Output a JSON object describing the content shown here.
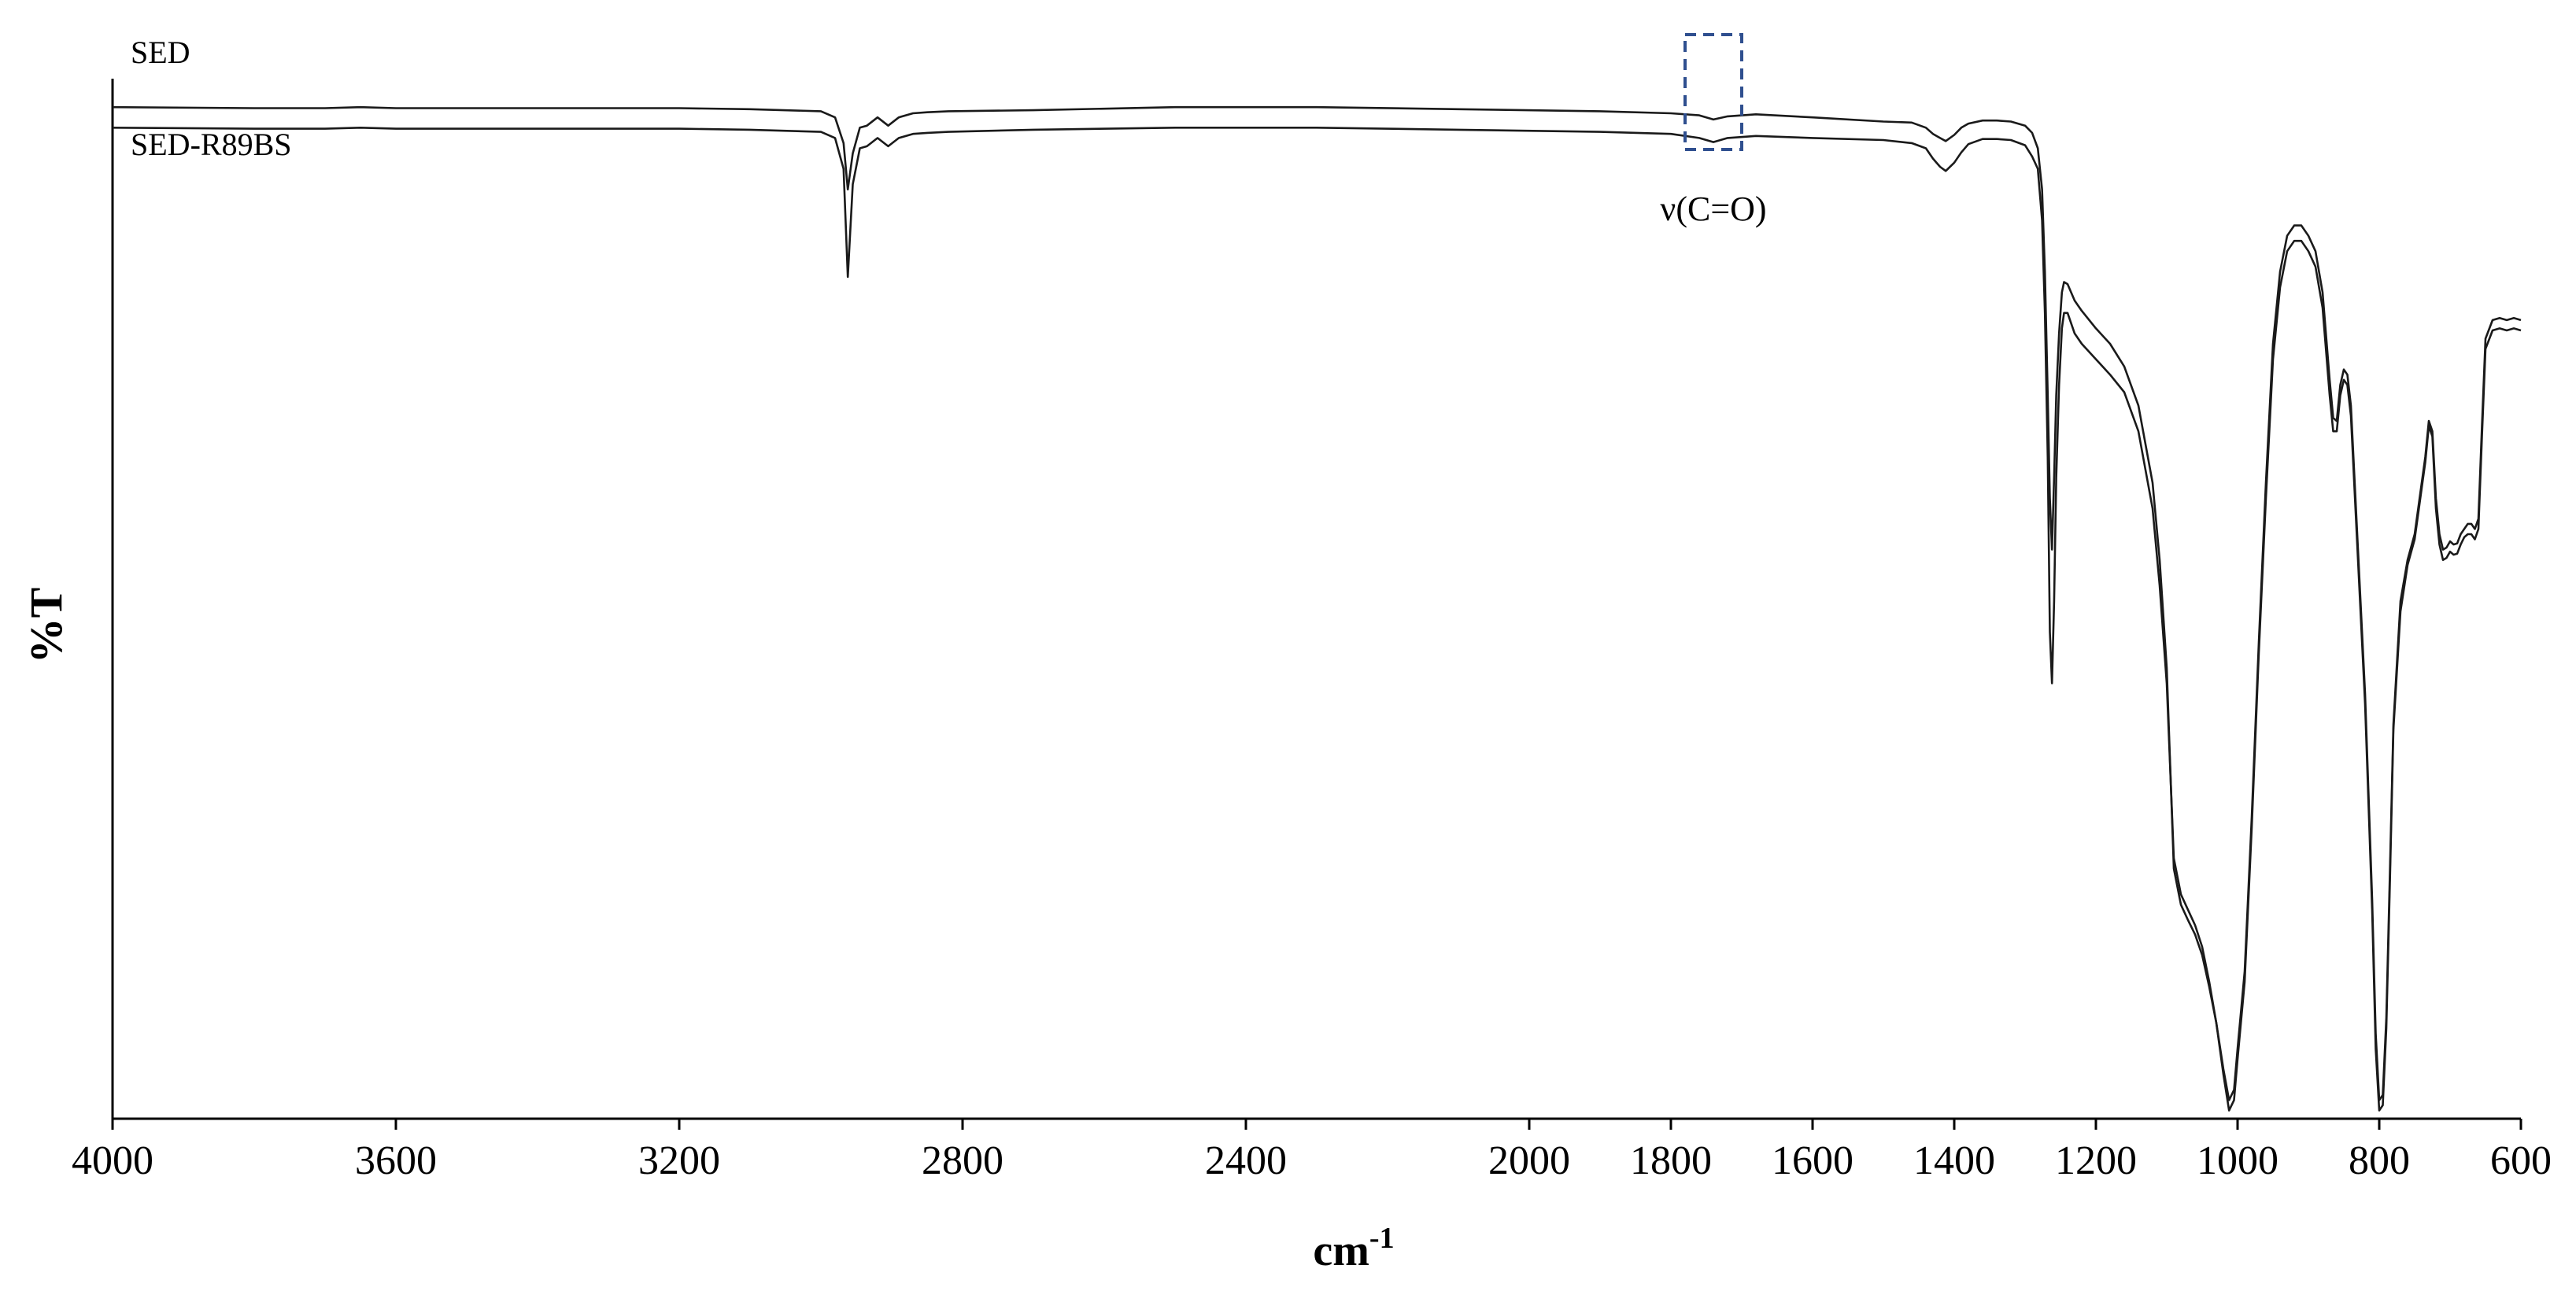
{
  "chart_data": {
    "type": "line",
    "xlabel": "cm",
    "xlabel_sup": "-1",
    "ylabel": "%T",
    "xlim": [
      4000,
      600
    ],
    "x_reversed": true,
    "y_tick_labels": false,
    "ylim": [
      0,
      100
    ],
    "grid": false,
    "xticks": [
      4000,
      3600,
      3200,
      2800,
      2400,
      2000,
      1800,
      1600,
      1400,
      1200,
      1000,
      800,
      600
    ],
    "series": [
      {
        "name": "SED",
        "x": [
          4000,
          3800,
          3700,
          3650,
          3600,
          3400,
          3200,
          3100,
          3000,
          2980,
          2968,
          2962,
          2955,
          2945,
          2935,
          2920,
          2905,
          2890,
          2870,
          2850,
          2820,
          2700,
          2500,
          2300,
          2100,
          1900,
          1800,
          1760,
          1740,
          1720,
          1680,
          1600,
          1500,
          1460,
          1440,
          1430,
          1420,
          1412,
          1400,
          1390,
          1380,
          1360,
          1340,
          1320,
          1300,
          1290,
          1282,
          1276,
          1272,
          1268,
          1265,
          1262,
          1259,
          1256,
          1252,
          1248,
          1245,
          1240,
          1230,
          1220,
          1200,
          1180,
          1160,
          1140,
          1120,
          1110,
          1100,
          1090,
          1080,
          1070,
          1060,
          1050,
          1040,
          1030,
          1020,
          1012,
          1005,
          1000,
          990,
          980,
          970,
          960,
          950,
          940,
          930,
          920,
          910,
          900,
          890,
          880,
          870,
          865,
          860,
          855,
          850,
          845,
          840,
          830,
          820,
          810,
          805,
          800,
          795,
          790,
          785,
          780,
          770,
          760,
          750,
          740,
          735,
          730,
          725,
          720,
          715,
          710,
          705,
          700,
          695,
          690,
          685,
          680,
          675,
          670,
          665,
          660,
          655,
          650,
          640,
          630,
          620,
          610,
          600
        ],
        "y": [
          98.0,
          97.9,
          97.9,
          98.0,
          97.9,
          97.9,
          97.9,
          97.8,
          97.6,
          97.0,
          94.5,
          90.0,
          93.5,
          96.0,
          96.2,
          97.0,
          96.2,
          97.0,
          97.4,
          97.5,
          97.6,
          97.7,
          98.0,
          98.0,
          97.8,
          97.6,
          97.4,
          97.2,
          96.8,
          97.1,
          97.3,
          97.0,
          96.6,
          96.5,
          96.0,
          95.4,
          95.0,
          94.7,
          95.3,
          96.0,
          96.4,
          96.7,
          96.7,
          96.6,
          96.2,
          95.5,
          94.0,
          90.0,
          82.0,
          70.0,
          60.0,
          55.0,
          62.0,
          70.0,
          76.0,
          80.0,
          81.0,
          80.8,
          79.2,
          78.2,
          76.5,
          75.0,
          72.8,
          69.0,
          61.5,
          54.0,
          43.5,
          24.0,
          20.5,
          19.0,
          17.6,
          15.6,
          12.5,
          9.0,
          4.5,
          1.5,
          2.5,
          6.5,
          14.0,
          29.0,
          46.0,
          61.5,
          75.0,
          82.0,
          85.5,
          86.5,
          86.5,
          85.5,
          84.0,
          80.0,
          71.5,
          67.8,
          67.5,
          71.0,
          72.5,
          72.0,
          69.0,
          55.0,
          41.0,
          21.0,
          8.0,
          1.5,
          2.0,
          9.5,
          23.5,
          38.0,
          50.0,
          54.0,
          56.5,
          61.5,
          64.0,
          67.5,
          66.5,
          60.0,
          56.5,
          55.0,
          55.2,
          55.8,
          55.5,
          55.6,
          56.5,
          57.0,
          57.5,
          57.5,
          57.0,
          58.0,
          67.0,
          75.5,
          77.3,
          77.5,
          77.3,
          77.5,
          77.3
        ]
      },
      {
        "name": "SED-R89BS",
        "x": [
          4000,
          3800,
          3700,
          3650,
          3600,
          3400,
          3200,
          3100,
          3000,
          2980,
          2968,
          2962,
          2955,
          2945,
          2935,
          2920,
          2905,
          2890,
          2870,
          2850,
          2820,
          2700,
          2500,
          2300,
          2100,
          1900,
          1800,
          1760,
          1740,
          1720,
          1680,
          1600,
          1500,
          1460,
          1440,
          1430,
          1420,
          1412,
          1400,
          1390,
          1380,
          1360,
          1340,
          1320,
          1300,
          1290,
          1282,
          1276,
          1272,
          1268,
          1265,
          1262,
          1259,
          1256,
          1252,
          1248,
          1245,
          1240,
          1230,
          1220,
          1200,
          1180,
          1160,
          1140,
          1120,
          1110,
          1100,
          1090,
          1080,
          1070,
          1060,
          1050,
          1040,
          1030,
          1020,
          1012,
          1005,
          1000,
          990,
          980,
          970,
          960,
          950,
          940,
          930,
          920,
          910,
          900,
          890,
          880,
          870,
          865,
          860,
          855,
          850,
          845,
          840,
          830,
          820,
          810,
          805,
          800,
          795,
          790,
          785,
          780,
          770,
          760,
          750,
          740,
          735,
          730,
          725,
          720,
          715,
          710,
          705,
          700,
          695,
          690,
          685,
          680,
          675,
          670,
          665,
          660,
          655,
          650,
          640,
          630,
          620,
          610,
          600
        ],
        "y": [
          96.0,
          95.9,
          95.9,
          96.0,
          95.9,
          95.9,
          95.9,
          95.8,
          95.6,
          95.0,
          92.0,
          81.5,
          90.5,
          94.0,
          94.2,
          95.0,
          94.2,
          95.0,
          95.4,
          95.5,
          95.6,
          95.8,
          96.0,
          96.0,
          95.8,
          95.6,
          95.4,
          95.0,
          94.6,
          95.0,
          95.2,
          95.0,
          94.8,
          94.5,
          94.0,
          93.0,
          92.2,
          91.8,
          92.6,
          93.6,
          94.4,
          94.9,
          94.9,
          94.8,
          94.3,
          93.2,
          92.0,
          87.0,
          78.0,
          64.0,
          47.0,
          42.0,
          50.0,
          62.0,
          71.0,
          76.5,
          78.0,
          78.0,
          76.0,
          75.0,
          73.5,
          72.0,
          70.3,
          66.5,
          59.0,
          51.5,
          42.0,
          25.0,
          21.5,
          20.0,
          18.5,
          16.4,
          13.0,
          9.0,
          4.0,
          0.5,
          1.5,
          5.5,
          13.0,
          28.0,
          45.0,
          60.0,
          73.5,
          80.5,
          84.0,
          85.0,
          85.0,
          84.0,
          82.5,
          78.5,
          70.0,
          66.5,
          66.5,
          70.0,
          71.5,
          71.0,
          68.0,
          54.0,
          40.0,
          20.0,
          6.5,
          0.5,
          1.0,
          8.5,
          22.5,
          37.5,
          49.0,
          53.5,
          56.0,
          61.0,
          63.5,
          67.0,
          66.0,
          59.0,
          55.5,
          54.0,
          54.2,
          54.8,
          54.5,
          54.6,
          55.5,
          56.2,
          56.5,
          56.5,
          56.0,
          57.0,
          66.0,
          74.5,
          76.3,
          76.5,
          76.3,
          76.5,
          76.3
        ]
      }
    ],
    "annotations": [
      {
        "text": "ν(C=O)",
        "x_range": [
          1780,
          1700
        ]
      }
    ]
  }
}
